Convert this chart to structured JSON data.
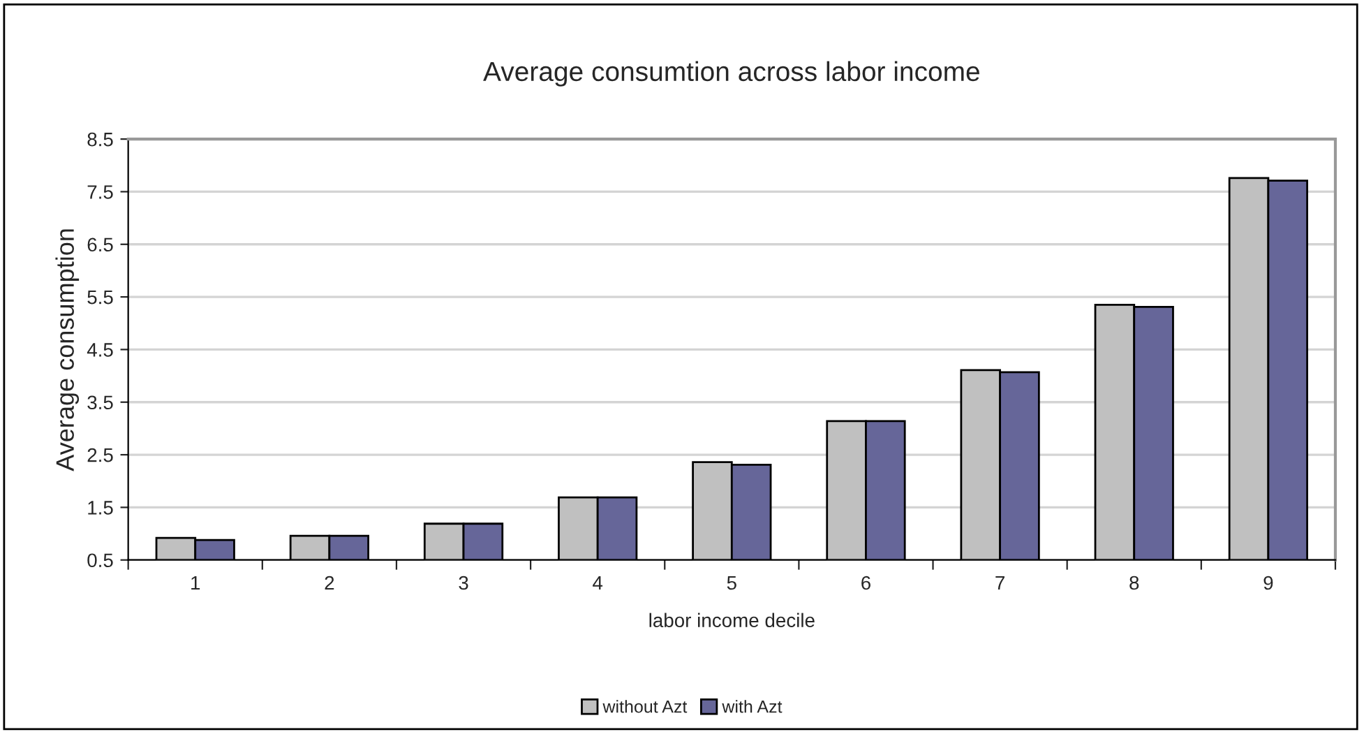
{
  "chart_data": {
    "type": "bar",
    "title": "Average consumtion across labor income",
    "xlabel": "labor income decile",
    "ylabel": "Average consumption",
    "categories": [
      "1",
      "2",
      "3",
      "4",
      "5",
      "6",
      "7",
      "8",
      "9"
    ],
    "series": [
      {
        "name": "without Azt",
        "color": "#c0c0c0",
        "values": [
          0.92,
          0.96,
          1.19,
          1.69,
          2.36,
          3.14,
          4.11,
          5.35,
          7.76
        ]
      },
      {
        "name": "with Azt",
        "color": "#666699",
        "values": [
          0.88,
          0.96,
          1.19,
          1.69,
          2.31,
          3.14,
          4.07,
          5.31,
          7.71
        ]
      }
    ],
    "ylim": [
      0.5,
      8.5
    ],
    "yticks": [
      0.5,
      1.5,
      2.5,
      3.5,
      4.5,
      5.5,
      6.5,
      7.5,
      8.5
    ],
    "grid": "y",
    "legend": "bottom"
  }
}
